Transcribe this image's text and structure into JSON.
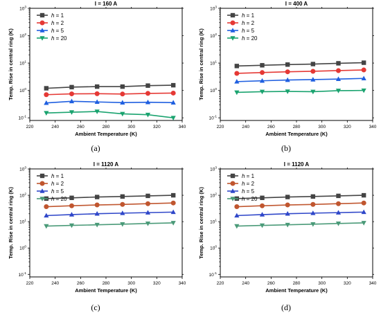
{
  "chart_data": [
    {
      "type": "line",
      "panel": "a",
      "caption": "(a)",
      "title": "I = 160 A",
      "xlabel": "Ambient Temperature (K)",
      "ylabel": "Temp. Rise in central ring (K)",
      "xlim": [
        220,
        340
      ],
      "ylim": [
        0.08,
        1000
      ],
      "yscale": "log",
      "xticks": [
        "220",
        "240",
        "260",
        "280",
        "300",
        "320",
        "340"
      ],
      "x": [
        233,
        253,
        273,
        293,
        313,
        333
      ],
      "series": [
        {
          "name": "h = 1",
          "values": [
            1.2,
            1.32,
            1.38,
            1.38,
            1.5,
            1.55
          ]
        },
        {
          "name": "h = 2",
          "values": [
            0.7,
            0.75,
            0.76,
            0.74,
            0.78,
            0.8
          ]
        },
        {
          "name": "h = 5",
          "values": [
            0.35,
            0.4,
            0.38,
            0.36,
            0.37,
            0.36
          ]
        },
        {
          "name": "h = 20",
          "values": [
            0.15,
            0.16,
            0.17,
            0.14,
            0.13,
            0.1
          ]
        }
      ]
    },
    {
      "type": "line",
      "panel": "b",
      "caption": "(b)",
      "title": "I = 400 A",
      "xlabel": "Ambient Temperature (K)",
      "ylabel": "Temp. Rise in central ring (K)",
      "xlim": [
        220,
        340
      ],
      "ylim": [
        0.08,
        1000
      ],
      "yscale": "log",
      "xticks": [
        "220",
        "240",
        "260",
        "280",
        "300",
        "320",
        "340"
      ],
      "x": [
        233,
        253,
        273,
        293,
        313,
        333
      ],
      "series": [
        {
          "name": "h = 1",
          "values": [
            7.8,
            8.3,
            8.8,
            9.2,
            9.8,
            10.3
          ]
        },
        {
          "name": "h = 2",
          "values": [
            4.2,
            4.5,
            4.8,
            5.0,
            5.3,
            5.6
          ]
        },
        {
          "name": "h = 5",
          "values": [
            2.1,
            2.25,
            2.4,
            2.5,
            2.6,
            2.75
          ]
        },
        {
          "name": "h = 20",
          "values": [
            0.85,
            0.9,
            0.92,
            0.9,
            0.98,
            1.0
          ]
        }
      ]
    },
    {
      "type": "line",
      "panel": "c",
      "caption": "(c)",
      "title": "I = 1120 A",
      "xlabel": "Ambient Temperature (K)",
      "ylabel": "Temp. Rise in central ring (K)",
      "xlim": [
        220,
        340
      ],
      "ylim": [
        0.08,
        1000
      ],
      "yscale": "log",
      "xticks": [
        "220",
        "240",
        "260",
        "280",
        "300",
        "320",
        "340"
      ],
      "x": [
        233,
        253,
        273,
        293,
        313,
        333
      ],
      "series": [
        {
          "name": "h = 1",
          "values": [
            75,
            80,
            86,
            90,
            95,
            100
          ]
        },
        {
          "name": "h = 2",
          "values": [
            37,
            40,
            43,
            45,
            48,
            51
          ]
        },
        {
          "name": "h = 5",
          "values": [
            17,
            18.5,
            20,
            21,
            22,
            23
          ]
        },
        {
          "name": "h = 20",
          "values": [
            6.8,
            7.2,
            7.6,
            8.0,
            8.5,
            9.0
          ]
        }
      ]
    },
    {
      "type": "line",
      "panel": "d",
      "caption": "(d)",
      "title": "I = 1120 A",
      "xlabel": "Ambient Temperature (K)",
      "ylabel": "Temp. Rise in central ring (K)",
      "xlim": [
        220,
        340
      ],
      "ylim": [
        0.08,
        1000
      ],
      "yscale": "log",
      "xticks": [
        "220",
        "240",
        "260",
        "280",
        "300",
        "320",
        "340"
      ],
      "x": [
        233,
        253,
        273,
        293,
        313,
        333
      ],
      "series": [
        {
          "name": "h = 1",
          "values": [
            75,
            80,
            86,
            90,
            95,
            100
          ]
        },
        {
          "name": "h = 2",
          "values": [
            37,
            40,
            43,
            45,
            48,
            51
          ]
        },
        {
          "name": "h = 5",
          "values": [
            17,
            18.5,
            20,
            21,
            22,
            23
          ]
        },
        {
          "name": "h = 20",
          "values": [
            6.8,
            7.2,
            7.6,
            8.0,
            8.5,
            9.0
          ]
        }
      ]
    }
  ],
  "styles": {
    "panels_a_b_colors": [
      "#444444",
      "#e53935",
      "#1f5fe0",
      "#1aa36f"
    ],
    "panels_c_d_colors": [
      "#444444",
      "#c0562f",
      "#2f47c9",
      "#4a9a78"
    ],
    "markers": [
      "square",
      "circle",
      "triangle-up",
      "triangle-down"
    ]
  }
}
